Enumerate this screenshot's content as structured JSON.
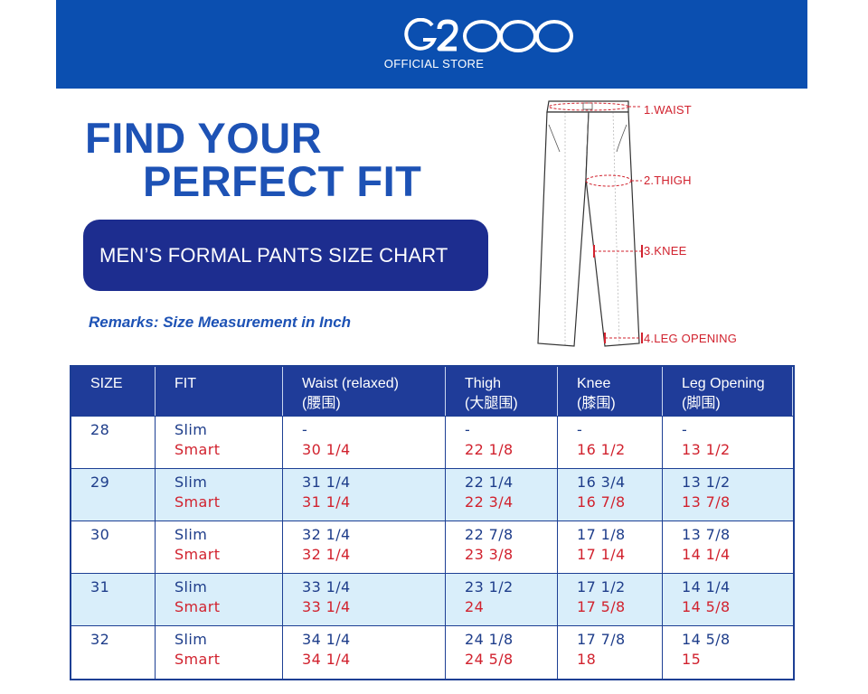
{
  "brand": {
    "logo_text": "G2000",
    "subtitle": "OFFICIAL STORE"
  },
  "headline": {
    "line1": "FIND YOUR",
    "line2": "PERFECT FIT"
  },
  "chart_title": "MEN’S FORMAL PANTS SIZE CHART",
  "remarks": "Remarks: Size Measurement in Inch",
  "diagram_labels": {
    "waist": "1.WAIST",
    "thigh": "2.THIGH",
    "knee": "3.KNEE",
    "leg_opening": "4.LEG OPENING"
  },
  "colors": {
    "banner": "#0b4fb0",
    "headline": "#1d52b5",
    "pill": "#1d2d8f",
    "table_header": "#1f3c99",
    "alt_row": "#d9eefa",
    "smart_text": "#d1222e",
    "slim_text": "#1e3d8a"
  },
  "table": {
    "headers": [
      {
        "main": "SIZE",
        "sub": ""
      },
      {
        "main": "FIT",
        "sub": ""
      },
      {
        "main": "Waist (relaxed)",
        "sub": "(腰围)"
      },
      {
        "main": "Thigh",
        "sub": "(大腿围)"
      },
      {
        "main": "Knee",
        "sub": "(膝围)"
      },
      {
        "main": "Leg Opening",
        "sub": "(脚围)"
      }
    ],
    "rows": [
      {
        "size": "28",
        "fit_slim": "Slim",
        "fit_smart": "Smart",
        "waist_slim": "-",
        "waist_smart": "30 1/4",
        "thigh_slim": "-",
        "thigh_smart": "22 1/8",
        "knee_slim": "-",
        "knee_smart": "16 1/2",
        "leg_slim": "-",
        "leg_smart": "13 1/2"
      },
      {
        "size": "29",
        "fit_slim": "Slim",
        "fit_smart": "Smart",
        "waist_slim": "31 1/4",
        "waist_smart": "31 1/4",
        "thigh_slim": "22 1/4",
        "thigh_smart": "22 3/4",
        "knee_slim": "16 3/4",
        "knee_smart": "16 7/8",
        "leg_slim": "13 1/2",
        "leg_smart": "13 7/8"
      },
      {
        "size": "30",
        "fit_slim": "Slim",
        "fit_smart": "Smart",
        "waist_slim": "32 1/4",
        "waist_smart": "32 1/4",
        "thigh_slim": "22 7/8",
        "thigh_smart": "23 3/8",
        "knee_slim": "17 1/8",
        "knee_smart": "17 1/4",
        "leg_slim": "13 7/8",
        "leg_smart": "14 1/4"
      },
      {
        "size": "31",
        "fit_slim": "Slim",
        "fit_smart": "Smart",
        "waist_slim": "33 1/4",
        "waist_smart": "33 1/4",
        "thigh_slim": "23 1/2",
        "thigh_smart": "24",
        "knee_slim": "17 1/2",
        "knee_smart": "17 5/8",
        "leg_slim": "14 1/4",
        "leg_smart": "14 5/8"
      },
      {
        "size": "32",
        "fit_slim": "Slim",
        "fit_smart": "Smart",
        "waist_slim": "34 1/4",
        "waist_smart": "34 1/4",
        "thigh_slim": "24 1/8",
        "thigh_smart": "24 5/8",
        "knee_slim": "17 7/8",
        "knee_smart": "18",
        "leg_slim": "14 5/8",
        "leg_smart": "15"
      }
    ]
  }
}
